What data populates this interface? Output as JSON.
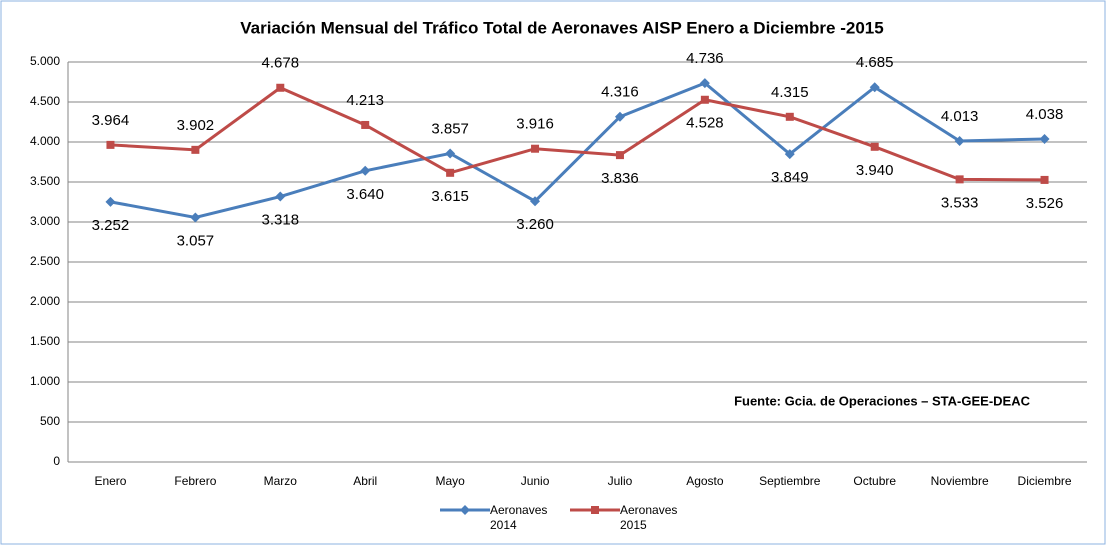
{
  "chart_data": {
    "type": "line",
    "title": "Variación Mensual del Tráfico Total de Aeronaves AISP Enero a Diciembre -2015",
    "annotation": "Fuente: Gcia. de Operaciones – STA-GEE-DEAC",
    "categories": [
      "Enero",
      "Febrero",
      "Marzo",
      "Abril",
      "Mayo",
      "Junio",
      "Julio",
      "Agosto",
      "Septiembre",
      "Octubre",
      "Noviembre",
      "Diciembre"
    ],
    "series": [
      {
        "name": "Aeronaves 2014",
        "color": "#4a7ebb",
        "marker": "diamond",
        "values": [
          3252,
          3057,
          3318,
          3640,
          3857,
          3260,
          4316,
          4736,
          3849,
          4685,
          4013,
          4038
        ],
        "value_labels": [
          "3.252",
          "3.057",
          "3.318",
          "3.640",
          "3.857",
          "3.260",
          "4.316",
          "4.736",
          "3.849",
          "4.685",
          "4.013",
          "4.038"
        ]
      },
      {
        "name": "Aeronaves 2015",
        "color": "#be4b48",
        "marker": "square",
        "values": [
          3964,
          3902,
          4678,
          4213,
          3615,
          3916,
          3836,
          4528,
          4315,
          3940,
          3533,
          3526
        ],
        "value_labels": [
          "3.964",
          "3.902",
          "4.678",
          "4.213",
          "3.615",
          "3.916",
          "3.836",
          "4.528",
          "4.315",
          "3.940",
          "3.533",
          "3.526"
        ]
      }
    ],
    "ylim": [
      0,
      5000
    ],
    "yticks": [
      0,
      500,
      {
        "value": 1000,
        "label": "1.000"
      },
      {
        "value": 1500,
        "label": "1.500"
      },
      {
        "value": 2000,
        "label": "2.000"
      },
      {
        "value": 2500,
        "label": "2.500"
      },
      {
        "value": 3000,
        "label": "3.000"
      },
      {
        "value": 3500,
        "label": "3.500"
      },
      {
        "value": 4000,
        "label": "4.000"
      },
      {
        "value": 4500,
        "label": "4.500"
      },
      {
        "value": 5000,
        "label": "5.000"
      }
    ],
    "grid": true,
    "legend": "bottom"
  }
}
